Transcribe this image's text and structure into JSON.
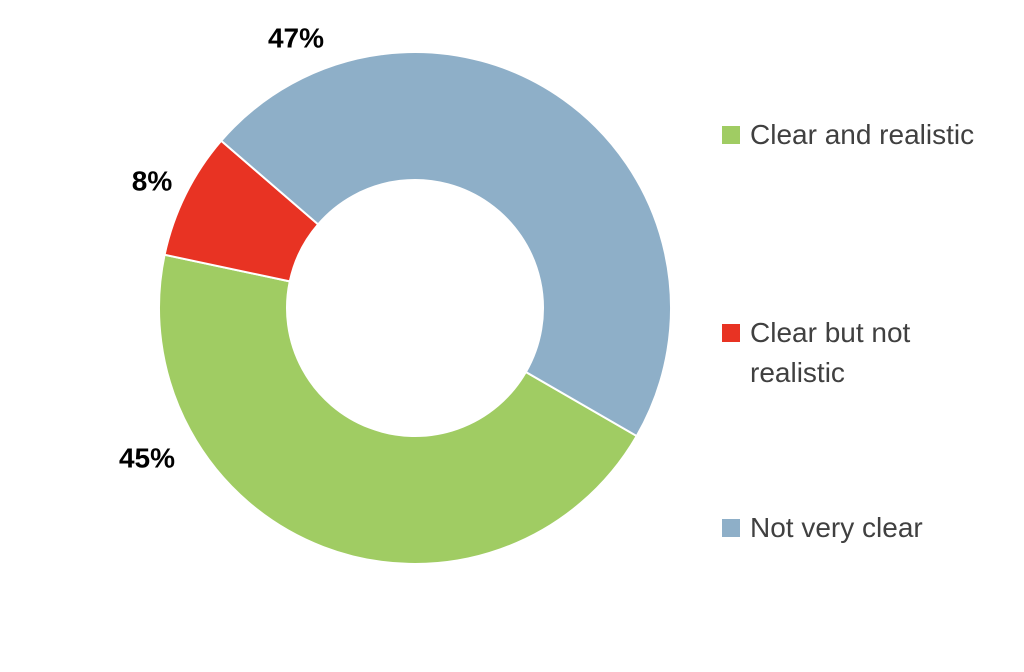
{
  "chart_data": {
    "type": "donut",
    "categories": [
      "Clear and realistic",
      "Clear but not realistic",
      "Not very clear"
    ],
    "values": [
      45,
      8,
      47
    ],
    "value_labels": [
      "45%",
      "8%",
      "47%"
    ],
    "colors": [
      "#a0cc63",
      "#e83323",
      "#8eafc8"
    ]
  }
}
